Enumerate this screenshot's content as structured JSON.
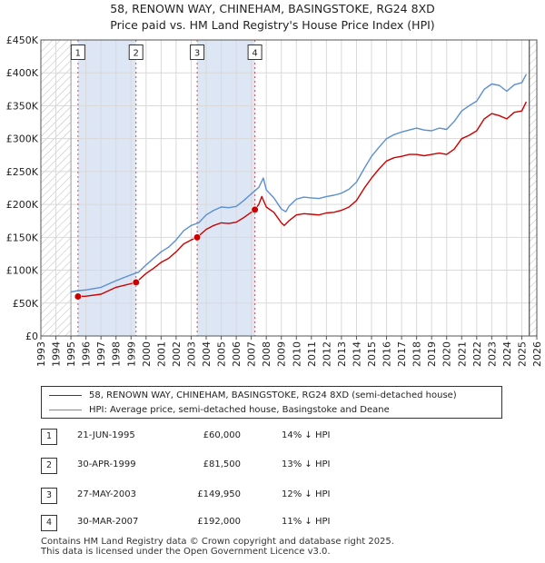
{
  "title": {
    "line1": "58, RENOWN WAY, CHINEHAM, BASINGSTOKE, RG24 8XD",
    "line2": "Price paid vs. HM Land Registry's House Price Index (HPI)"
  },
  "chart_data": {
    "type": "line",
    "title": "58, RENOWN WAY, CHINEHAM, BASINGSTOKE, RG24 8XD — Price paid vs. HM Land Registry's House Price Index (HPI)",
    "xlim": [
      1993,
      2026
    ],
    "ylim": [
      0,
      450000
    ],
    "x_ticks": [
      1993,
      1994,
      1995,
      1996,
      1997,
      1998,
      1999,
      2000,
      2001,
      2002,
      2003,
      2004,
      2005,
      2006,
      2007,
      2008,
      2009,
      2010,
      2011,
      2012,
      2013,
      2014,
      2015,
      2016,
      2017,
      2018,
      2019,
      2020,
      2021,
      2022,
      2023,
      2024,
      2025,
      2026
    ],
    "y_ticks": [
      0,
      50000,
      100000,
      150000,
      200000,
      250000,
      300000,
      350000,
      400000,
      450000
    ],
    "y_tick_labels": [
      "£0",
      "£50K",
      "£100K",
      "£150K",
      "£200K",
      "£250K",
      "£300K",
      "£350K",
      "£400K",
      "£450K"
    ],
    "grid": true,
    "data_start": 1995.0,
    "data_end": 2025.5,
    "series": [
      {
        "name": "58, RENOWN WAY, CHINEHAM, BASINGSTOKE, RG24 8XD (semi-detached house)",
        "color": "#cc0000",
        "x": [
          1995.47,
          1996.0,
          1997.0,
          1998.0,
          1999.33,
          2000.0,
          2000.5,
          2001.0,
          2001.5,
          2002.0,
          2002.5,
          2003.0,
          2003.4,
          2004.0,
          2004.5,
          2005.0,
          2005.5,
          2006.0,
          2006.5,
          2007.24,
          2007.5,
          2007.7,
          2008.0,
          2008.5,
          2009.0,
          2009.2,
          2009.5,
          2010.0,
          2010.5,
          2011.0,
          2011.5,
          2012.0,
          2012.5,
          2013.0,
          2013.5,
          2014.0,
          2014.5,
          2015.0,
          2015.5,
          2016.0,
          2016.5,
          2017.0,
          2017.5,
          2018.0,
          2018.5,
          2019.0,
          2019.5,
          2020.0,
          2020.5,
          2021.0,
          2021.5,
          2022.0,
          2022.5,
          2023.0,
          2023.5,
          2024.0,
          2024.5,
          2025.0,
          2025.3
        ],
        "values": [
          60000,
          60500,
          63500,
          74000,
          81500,
          95000,
          103000,
          112000,
          118000,
          128000,
          140000,
          146000,
          149950,
          162000,
          168000,
          172000,
          171000,
          173000,
          180000,
          192000,
          200000,
          212000,
          196000,
          188000,
          172000,
          168000,
          175000,
          184000,
          186000,
          185000,
          184000,
          187000,
          188000,
          191000,
          196000,
          206000,
          224000,
          240000,
          254000,
          266000,
          271000,
          273000,
          276000,
          276000,
          274000,
          276000,
          278000,
          276000,
          284000,
          300000,
          305000,
          312000,
          330000,
          338000,
          335000,
          330000,
          340000,
          342000,
          356000
        ]
      },
      {
        "name": "HPI: Average price, semi-detached house, Basingstoke and Deane",
        "color": "#5b8fd1",
        "x": [
          1995.0,
          1995.5,
          1996.0,
          1997.0,
          1998.0,
          1999.0,
          1999.5,
          2000.0,
          2000.5,
          2001.0,
          2001.5,
          2002.0,
          2002.5,
          2003.0,
          2003.5,
          2004.0,
          2004.5,
          2005.0,
          2005.5,
          2006.0,
          2006.5,
          2007.0,
          2007.5,
          2007.8,
          2008.0,
          2008.5,
          2009.0,
          2009.3,
          2009.5,
          2010.0,
          2010.5,
          2011.0,
          2011.5,
          2012.0,
          2012.5,
          2013.0,
          2013.5,
          2014.0,
          2014.5,
          2015.0,
          2015.5,
          2016.0,
          2016.5,
          2017.0,
          2017.5,
          2018.0,
          2018.5,
          2019.0,
          2019.5,
          2020.0,
          2020.5,
          2021.0,
          2021.5,
          2022.0,
          2022.5,
          2023.0,
          2023.5,
          2024.0,
          2024.5,
          2025.0,
          2025.3
        ],
        "values": [
          67000,
          69000,
          70000,
          74000,
          84000,
          93000,
          97000,
          108000,
          118000,
          128000,
          135000,
          146000,
          160000,
          168000,
          172000,
          184000,
          191000,
          196000,
          195000,
          197000,
          206000,
          216000,
          226000,
          240000,
          222000,
          210000,
          193000,
          189000,
          197000,
          208000,
          211000,
          210000,
          209000,
          212000,
          214000,
          217000,
          223000,
          234000,
          254000,
          273000,
          287000,
          300000,
          306000,
          310000,
          313000,
          316000,
          313000,
          312000,
          316000,
          314000,
          326000,
          342000,
          350000,
          357000,
          375000,
          383000,
          381000,
          372000,
          382000,
          385000,
          398000
        ]
      }
    ],
    "sales": [
      {
        "num": "1",
        "x": 1995.47,
        "price": 60000,
        "label_value": 430000
      },
      {
        "num": "2",
        "x": 1999.33,
        "price": 81500,
        "label_value": 430000
      },
      {
        "num": "3",
        "x": 2003.4,
        "price": 149950,
        "label_value": 430000
      },
      {
        "num": "4",
        "x": 2007.24,
        "price": 192000,
        "label_value": 430000
      }
    ],
    "shaded_periods": [
      [
        1995.47,
        1999.33
      ],
      [
        2003.4,
        2007.24
      ]
    ],
    "hatched_periods": [
      [
        1993,
        1995.0
      ],
      [
        2025.5,
        2026
      ]
    ]
  },
  "legend": {
    "items": [
      {
        "label": "58, RENOWN WAY, CHINEHAM, BASINGSTOKE, RG24 8XD (semi-detached house)",
        "color": "#cc0000"
      },
      {
        "label": "HPI: Average price, semi-detached house, Basingstoke and Deane",
        "color": "#5b8fd1"
      }
    ]
  },
  "transactions": [
    {
      "num": "1",
      "date": "21-JUN-1995",
      "price": "£60,000",
      "hpi": "14% ↓ HPI"
    },
    {
      "num": "2",
      "date": "30-APR-1999",
      "price": "£81,500",
      "hpi": "13% ↓ HPI"
    },
    {
      "num": "3",
      "date": "27-MAY-2003",
      "price": "£149,950",
      "hpi": "12% ↓ HPI"
    },
    {
      "num": "4",
      "date": "30-MAR-2007",
      "price": "£192,000",
      "hpi": "11% ↓ HPI"
    }
  ],
  "footer": {
    "line1": "Contains HM Land Registry data © Crown copyright and database right 2025.",
    "line2": "This data is licensed under the Open Government Licence v3.0."
  }
}
